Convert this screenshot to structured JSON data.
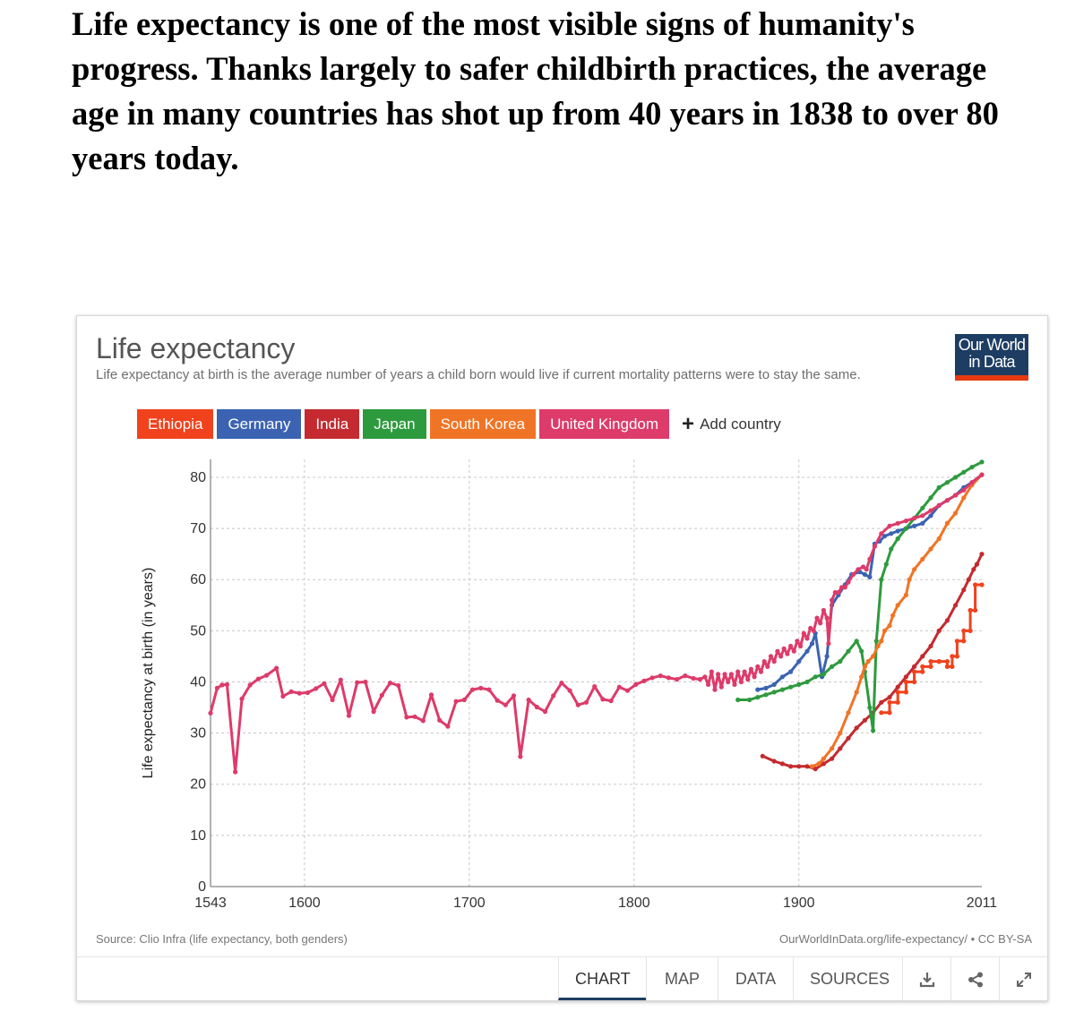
{
  "headline": "Life expectancy is one of the most visible signs of humanity's progress. Thanks largely to safer childbirth practices, the average age in many countries has shot up from 40 years in 1838 to over 80 years today.",
  "card": {
    "title": "Life expectancy",
    "subtitle": "Life expectancy at birth is the average number of years a child born would live if current mortality patterns were to stay the same.",
    "logo": {
      "line1": "Our World",
      "line2": "in Data",
      "bg": "#1d3d63",
      "accent": "#e63912"
    },
    "add_country": "Add country",
    "source": "Source: Clio Infra (life expectancy, both genders)",
    "url": "OurWorldInData.org/life-expectancy/ • CC BY-SA",
    "tabs": [
      "CHART",
      "MAP",
      "DATA",
      "SOURCES"
    ],
    "active_tab": "CHART",
    "icons": [
      "download-icon",
      "share-icon",
      "expand-icon"
    ]
  },
  "legend": [
    {
      "name": "Ethiopia",
      "color": "#f0421d"
    },
    {
      "name": "Germany",
      "color": "#3b63b1"
    },
    {
      "name": "India",
      "color": "#c42a2f"
    },
    {
      "name": "Japan",
      "color": "#2e9a3e"
    },
    {
      "name": "South Korea",
      "color": "#f07425"
    },
    {
      "name": "United Kingdom",
      "color": "#dd3b6a"
    }
  ],
  "chart_data": {
    "type": "line",
    "title": "Life expectancy",
    "xlabel": "",
    "ylabel": "Life expectancy at birth (in years)",
    "xlim": [
      1543,
      2011
    ],
    "ylim": [
      0,
      80
    ],
    "xticks": [
      1543,
      1600,
      1700,
      1800,
      1900,
      2011
    ],
    "yticks": [
      0,
      10,
      20,
      30,
      40,
      50,
      60,
      70,
      80
    ],
    "grid": true,
    "series": [
      {
        "name": "Ethiopia",
        "color": "#f0421d",
        "points": [
          [
            1950,
            34
          ],
          [
            1955,
            34
          ],
          [
            1955,
            36
          ],
          [
            1960,
            36
          ],
          [
            1960,
            38
          ],
          [
            1965,
            38
          ],
          [
            1965,
            40
          ],
          [
            1970,
            40
          ],
          [
            1970,
            42
          ],
          [
            1975,
            42
          ],
          [
            1975,
            43
          ],
          [
            1980,
            43
          ],
          [
            1980,
            44
          ],
          [
            1985,
            44
          ],
          [
            1985,
            44
          ],
          [
            1990,
            44
          ],
          [
            1990,
            43
          ],
          [
            1993,
            43
          ],
          [
            1993,
            45
          ],
          [
            1996,
            45
          ],
          [
            1996,
            48
          ],
          [
            2000,
            48
          ],
          [
            2000,
            50
          ],
          [
            2004,
            50
          ],
          [
            2004,
            54
          ],
          [
            2007,
            54
          ],
          [
            2007,
            59
          ],
          [
            2011,
            59
          ]
        ]
      },
      {
        "name": "Germany",
        "color": "#3b63b1",
        "points": [
          [
            1875,
            38.5
          ],
          [
            1880,
            38.8
          ],
          [
            1885,
            39.5
          ],
          [
            1890,
            41
          ],
          [
            1895,
            42
          ],
          [
            1900,
            44
          ],
          [
            1905,
            46
          ],
          [
            1908,
            47.5
          ],
          [
            1910,
            49.5
          ],
          [
            1914,
            41
          ],
          [
            1917,
            45
          ],
          [
            1920,
            55
          ],
          [
            1924,
            57
          ],
          [
            1928,
            59
          ],
          [
            1932,
            61
          ],
          [
            1937,
            61.5
          ],
          [
            1940,
            61
          ],
          [
            1943,
            60.5
          ],
          [
            1946,
            67
          ],
          [
            1949,
            67.5
          ],
          [
            1952,
            68.5
          ],
          [
            1956,
            69
          ],
          [
            1960,
            69.5
          ],
          [
            1965,
            70
          ],
          [
            1970,
            70.5
          ],
          [
            1975,
            71
          ],
          [
            1980,
            72.5
          ],
          [
            1985,
            74.5
          ],
          [
            1990,
            75.5
          ],
          [
            1995,
            76.5
          ],
          [
            2000,
            78
          ],
          [
            2005,
            79
          ],
          [
            2011,
            80.5
          ]
        ]
      },
      {
        "name": "India",
        "color": "#c42a2f",
        "points": [
          [
            1878,
            25.5
          ],
          [
            1885,
            24.5
          ],
          [
            1890,
            24
          ],
          [
            1895,
            23.5
          ],
          [
            1900,
            23.5
          ],
          [
            1905,
            23.5
          ],
          [
            1910,
            23
          ],
          [
            1915,
            24
          ],
          [
            1920,
            25
          ],
          [
            1925,
            27
          ],
          [
            1930,
            29
          ],
          [
            1935,
            31
          ],
          [
            1940,
            32.5
          ],
          [
            1945,
            34
          ],
          [
            1950,
            36
          ],
          [
            1955,
            37
          ],
          [
            1960,
            39
          ],
          [
            1965,
            41
          ],
          [
            1970,
            43
          ],
          [
            1975,
            45
          ],
          [
            1980,
            47
          ],
          [
            1985,
            50
          ],
          [
            1990,
            52
          ],
          [
            1995,
            55
          ],
          [
            2000,
            58
          ],
          [
            2003,
            60
          ],
          [
            2006,
            62
          ],
          [
            2008,
            63
          ],
          [
            2011,
            65
          ]
        ]
      },
      {
        "name": "Japan",
        "color": "#2e9a3e",
        "points": [
          [
            1863,
            36.5
          ],
          [
            1870,
            36.5
          ],
          [
            1875,
            37
          ],
          [
            1880,
            37.5
          ],
          [
            1885,
            38
          ],
          [
            1890,
            38.5
          ],
          [
            1895,
            39
          ],
          [
            1900,
            39.5
          ],
          [
            1905,
            40
          ],
          [
            1910,
            41
          ],
          [
            1915,
            41.5
          ],
          [
            1920,
            43
          ],
          [
            1925,
            44
          ],
          [
            1930,
            46
          ],
          [
            1935,
            48
          ],
          [
            1938,
            46
          ],
          [
            1940,
            42
          ],
          [
            1943,
            35
          ],
          [
            1945,
            30.5
          ],
          [
            1947,
            48
          ],
          [
            1950,
            60
          ],
          [
            1953,
            63
          ],
          [
            1956,
            66
          ],
          [
            1960,
            68
          ],
          [
            1965,
            70
          ],
          [
            1970,
            72
          ],
          [
            1975,
            74
          ],
          [
            1980,
            76
          ],
          [
            1985,
            78
          ],
          [
            1990,
            79
          ],
          [
            1995,
            80
          ],
          [
            2000,
            81
          ],
          [
            2005,
            82
          ],
          [
            2011,
            83
          ]
        ]
      },
      {
        "name": "South Korea",
        "color": "#f07425",
        "points": [
          [
            1908,
            23.5
          ],
          [
            1912,
            24
          ],
          [
            1915,
            25
          ],
          [
            1920,
            27
          ],
          [
            1925,
            30
          ],
          [
            1930,
            34
          ],
          [
            1935,
            38
          ],
          [
            1938,
            41
          ],
          [
            1940,
            43
          ],
          [
            1942,
            44
          ],
          [
            1945,
            45
          ],
          [
            1948,
            47
          ],
          [
            1950,
            48
          ],
          [
            1952,
            50
          ],
          [
            1955,
            51
          ],
          [
            1957,
            53
          ],
          [
            1960,
            55
          ],
          [
            1965,
            57
          ],
          [
            1967,
            60
          ],
          [
            1970,
            62
          ],
          [
            1975,
            64
          ],
          [
            1980,
            66
          ],
          [
            1985,
            68
          ],
          [
            1990,
            71
          ],
          [
            1995,
            73
          ],
          [
            2000,
            76
          ],
          [
            2005,
            78.5
          ],
          [
            2011,
            80.5
          ]
        ]
      },
      {
        "name": "United Kingdom",
        "color": "#dd3b6a",
        "points": [
          [
            1543,
            33.9
          ],
          [
            1547,
            38.8
          ],
          [
            1550,
            39.4
          ],
          [
            1553,
            39.5
          ],
          [
            1558,
            22.4
          ],
          [
            1562,
            36.7
          ],
          [
            1567,
            39.4
          ],
          [
            1572,
            40.6
          ],
          [
            1577,
            41.3
          ],
          [
            1583,
            42.7
          ],
          [
            1587,
            37.2
          ],
          [
            1592,
            38.1
          ],
          [
            1597,
            37.8
          ],
          [
            1602,
            37.9
          ],
          [
            1607,
            38.7
          ],
          [
            1612,
            39.7
          ],
          [
            1617,
            36.5
          ],
          [
            1622,
            40.4
          ],
          [
            1627,
            33.4
          ],
          [
            1632,
            39.9
          ],
          [
            1637,
            40
          ],
          [
            1642,
            34.2
          ],
          [
            1647,
            37.4
          ],
          [
            1652,
            39.8
          ],
          [
            1657,
            39.3
          ],
          [
            1662,
            33.1
          ],
          [
            1667,
            33.2
          ],
          [
            1672,
            32.4
          ],
          [
            1677,
            37.5
          ],
          [
            1682,
            32.5
          ],
          [
            1687,
            31.3
          ],
          [
            1692,
            36.2
          ],
          [
            1697,
            36.5
          ],
          [
            1702,
            38.5
          ],
          [
            1707,
            38.8
          ],
          [
            1712,
            38.5
          ],
          [
            1717,
            36.4
          ],
          [
            1722,
            35.5
          ],
          [
            1727,
            37.3
          ],
          [
            1731,
            25.4
          ],
          [
            1736,
            36.5
          ],
          [
            1741,
            35.1
          ],
          [
            1746,
            34.2
          ],
          [
            1751,
            37.3
          ],
          [
            1756,
            39.8
          ],
          [
            1761,
            38.3
          ],
          [
            1766,
            35.5
          ],
          [
            1771,
            36
          ],
          [
            1776,
            39.1
          ],
          [
            1781,
            36.6
          ],
          [
            1786,
            36.3
          ],
          [
            1791,
            39
          ],
          [
            1796,
            38.3
          ],
          [
            1801,
            39.5
          ],
          [
            1806,
            40.2
          ],
          [
            1811,
            40.8
          ],
          [
            1816,
            41.2
          ],
          [
            1821,
            40.8
          ],
          [
            1826,
            40.5
          ],
          [
            1831,
            41.2
          ],
          [
            1836,
            40.7
          ],
          [
            1840,
            40.5
          ],
          [
            1843,
            41
          ],
          [
            1845,
            39.5
          ],
          [
            1847,
            42
          ],
          [
            1849,
            38.5
          ],
          [
            1851,
            41.5
          ],
          [
            1853,
            39
          ],
          [
            1855,
            41.5
          ],
          [
            1857,
            40
          ],
          [
            1859,
            41.5
          ],
          [
            1861,
            39.5
          ],
          [
            1863,
            42
          ],
          [
            1865,
            40
          ],
          [
            1867,
            42
          ],
          [
            1869,
            40.5
          ],
          [
            1871,
            42.5
          ],
          [
            1873,
            41
          ],
          [
            1875,
            43
          ],
          [
            1877,
            42
          ],
          [
            1879,
            44
          ],
          [
            1881,
            43
          ],
          [
            1883,
            45
          ],
          [
            1885,
            44
          ],
          [
            1887,
            46
          ],
          [
            1889,
            45
          ],
          [
            1891,
            46.5
          ],
          [
            1893,
            45.5
          ],
          [
            1895,
            47
          ],
          [
            1897,
            46
          ],
          [
            1899,
            48
          ],
          [
            1901,
            47
          ],
          [
            1903,
            49.5
          ],
          [
            1905,
            48.5
          ],
          [
            1907,
            50.5
          ],
          [
            1909,
            50
          ],
          [
            1911,
            52.5
          ],
          [
            1913,
            51.5
          ],
          [
            1915,
            54
          ],
          [
            1917,
            52.5
          ],
          [
            1918,
            47.5
          ],
          [
            1920,
            56
          ],
          [
            1922,
            57.5
          ],
          [
            1924,
            57.5
          ],
          [
            1926,
            58.5
          ],
          [
            1928,
            58.5
          ],
          [
            1930,
            59.5
          ],
          [
            1933,
            61
          ],
          [
            1936,
            62
          ],
          [
            1939,
            62.5
          ],
          [
            1941,
            62
          ],
          [
            1943,
            64
          ],
          [
            1946,
            66.5
          ],
          [
            1950,
            69
          ],
          [
            1955,
            70.5
          ],
          [
            1960,
            71
          ],
          [
            1965,
            71.5
          ],
          [
            1970,
            72
          ],
          [
            1975,
            72.5
          ],
          [
            1980,
            73.5
          ],
          [
            1985,
            74.5
          ],
          [
            1990,
            75.5
          ],
          [
            1995,
            76.5
          ],
          [
            2000,
            77.5
          ],
          [
            2005,
            79
          ],
          [
            2011,
            80.5
          ]
        ]
      }
    ]
  }
}
